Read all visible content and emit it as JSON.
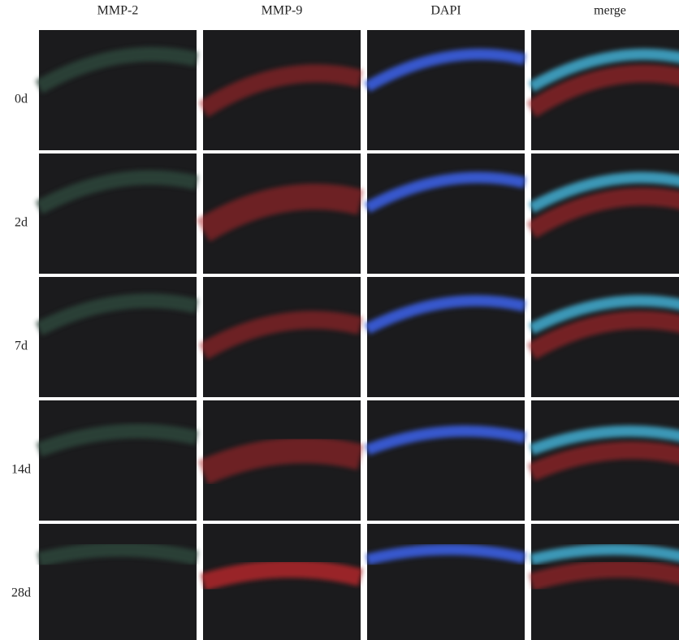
{
  "columns": [
    "MMP-2",
    "MMP-9",
    "DAPI",
    "merge"
  ],
  "rows": [
    "0d",
    "2d",
    "7d",
    "14d",
    "28d"
  ]
}
